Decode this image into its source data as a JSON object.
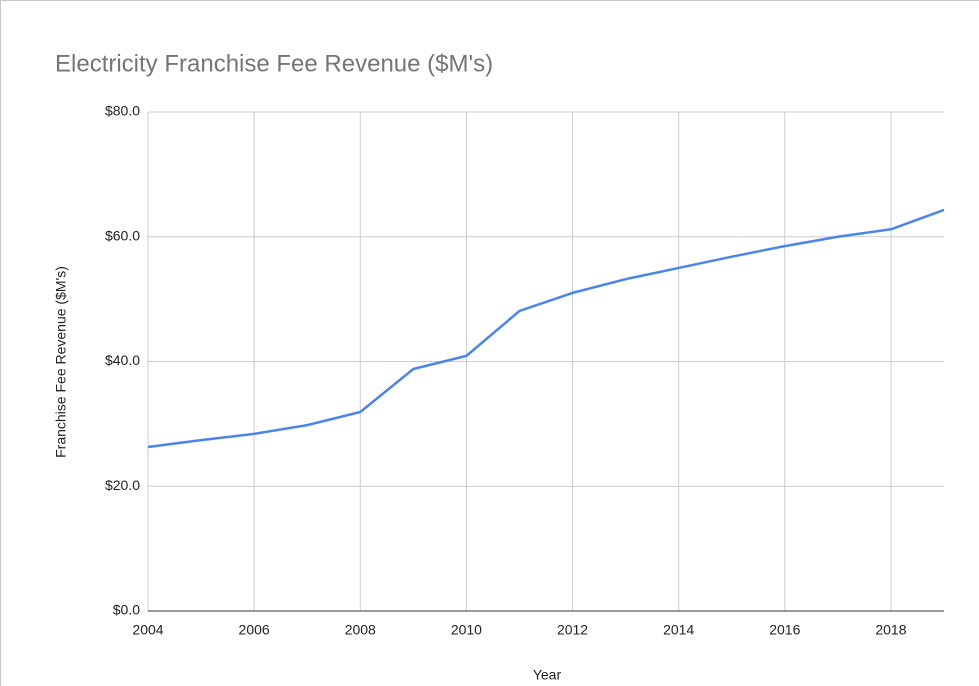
{
  "chart_data": {
    "type": "line",
    "title": "Electricity Franchise Fee Revenue ($M's)",
    "x_label": "Year",
    "y_label": "Franchise Fee Revenue ($M's)",
    "x": [
      2004,
      2005,
      2006,
      2007,
      2008,
      2009,
      2010,
      2011,
      2012,
      2013,
      2014,
      2015,
      2016,
      2017,
      2018,
      2019
    ],
    "values": [
      26.3,
      27.4,
      28.4,
      29.8,
      31.9,
      38.8,
      40.9,
      48.1,
      51.0,
      53.2,
      55.0,
      56.8,
      58.5,
      60.0,
      61.2,
      64.3
    ],
    "color": "#4a86e8",
    "xlim": [
      2004,
      2019
    ],
    "xticks": [
      2004,
      2006,
      2008,
      2010,
      2012,
      2014,
      2016,
      2018
    ],
    "ylim": [
      0,
      80
    ],
    "yticks": [
      {
        "value": 0,
        "label": "$0.0"
      },
      {
        "value": 20,
        "label": "$20.0"
      },
      {
        "value": 40,
        "label": "$40.0"
      },
      {
        "value": 60,
        "label": "$60.0"
      },
      {
        "value": 80,
        "label": "$80.0"
      }
    ],
    "grid": true
  }
}
